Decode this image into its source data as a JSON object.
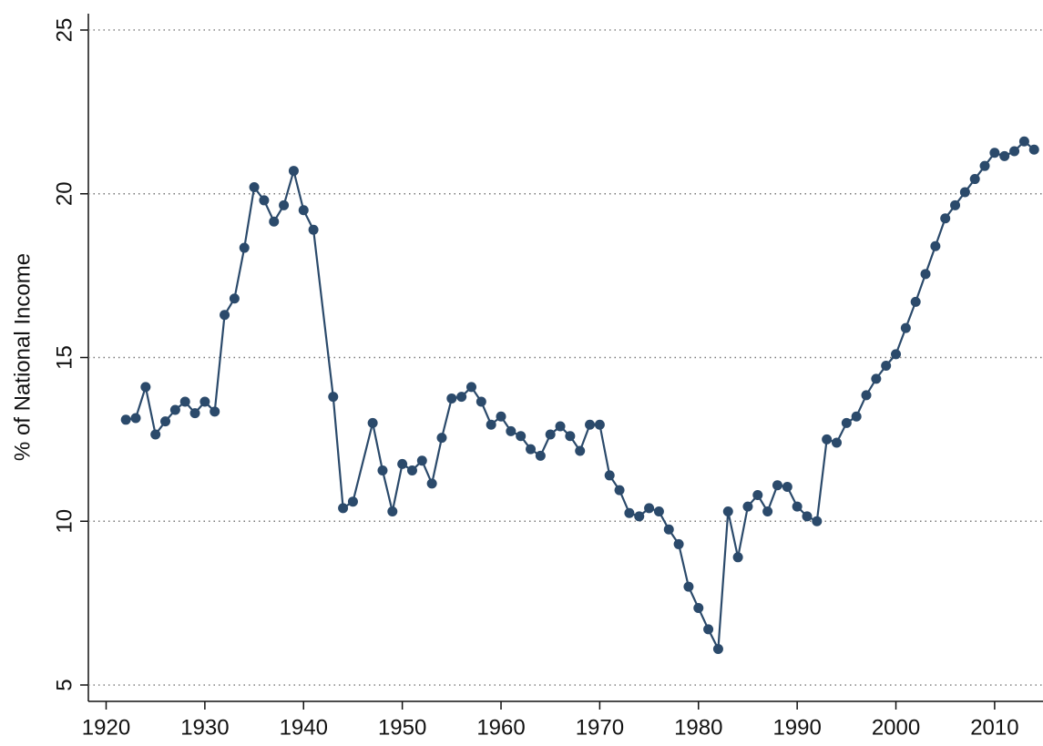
{
  "chart_data": {
    "type": "line",
    "y_label": "% of National Income",
    "x": [
      1922,
      1923,
      1924,
      1925,
      1926,
      1927,
      1928,
      1929,
      1930,
      1931,
      1932,
      1933,
      1934,
      1935,
      1936,
      1937,
      1938,
      1939,
      1940,
      1941,
      1943,
      1944,
      1945,
      1947,
      1948,
      1949,
      1950,
      1951,
      1952,
      1953,
      1954,
      1955,
      1956,
      1957,
      1958,
      1959,
      1960,
      1961,
      1962,
      1963,
      1964,
      1965,
      1966,
      1967,
      1968,
      1969,
      1970,
      1971,
      1972,
      1973,
      1974,
      1975,
      1976,
      1977,
      1978,
      1979,
      1980,
      1981,
      1982,
      1983,
      1984,
      1985,
      1986,
      1987,
      1988,
      1989,
      1990,
      1991,
      1992,
      1993,
      1994,
      1995,
      1996,
      1997,
      1998,
      1999,
      2000,
      2001,
      2002,
      2003,
      2004,
      2005,
      2006,
      2007,
      2008,
      2009,
      2010,
      2011,
      2012,
      2013,
      2014
    ],
    "values": [
      13.1,
      13.15,
      14.1,
      12.65,
      13.05,
      13.4,
      13.65,
      13.3,
      13.65,
      13.35,
      16.3,
      16.8,
      18.35,
      20.2,
      19.8,
      19.15,
      19.65,
      20.7,
      19.5,
      18.9,
      13.8,
      10.4,
      10.6,
      13.0,
      11.55,
      10.3,
      11.75,
      11.55,
      11.85,
      11.15,
      12.55,
      13.75,
      13.8,
      14.1,
      13.65,
      12.95,
      13.2,
      12.75,
      12.6,
      12.2,
      12.0,
      12.65,
      12.9,
      12.6,
      12.15,
      12.95,
      12.95,
      11.4,
      10.95,
      10.25,
      10.15,
      10.4,
      10.3,
      9.75,
      9.3,
      8.0,
      7.35,
      6.7,
      6.1,
      10.3,
      8.9,
      10.45,
      10.8,
      10.3,
      11.1,
      11.05,
      10.45,
      10.15,
      10.0,
      12.5,
      12.4,
      13.0,
      13.2,
      13.85,
      14.35,
      14.75,
      15.1,
      15.9,
      16.7,
      17.55,
      18.4,
      19.25,
      19.65,
      20.05,
      20.45,
      20.85,
      21.25,
      21.15,
      21.3,
      21.6,
      21.35
    ],
    "color": "#2b4a6b",
    "xlim": [
      1918.2,
      2014.9
    ],
    "xticks": [
      1920,
      1930,
      1940,
      1950,
      1960,
      1970,
      1980,
      1990,
      2000,
      2010
    ],
    "ylim": [
      4.5,
      25.5
    ],
    "yticks": [
      5,
      10,
      15,
      20,
      25
    ],
    "grid": true
  }
}
